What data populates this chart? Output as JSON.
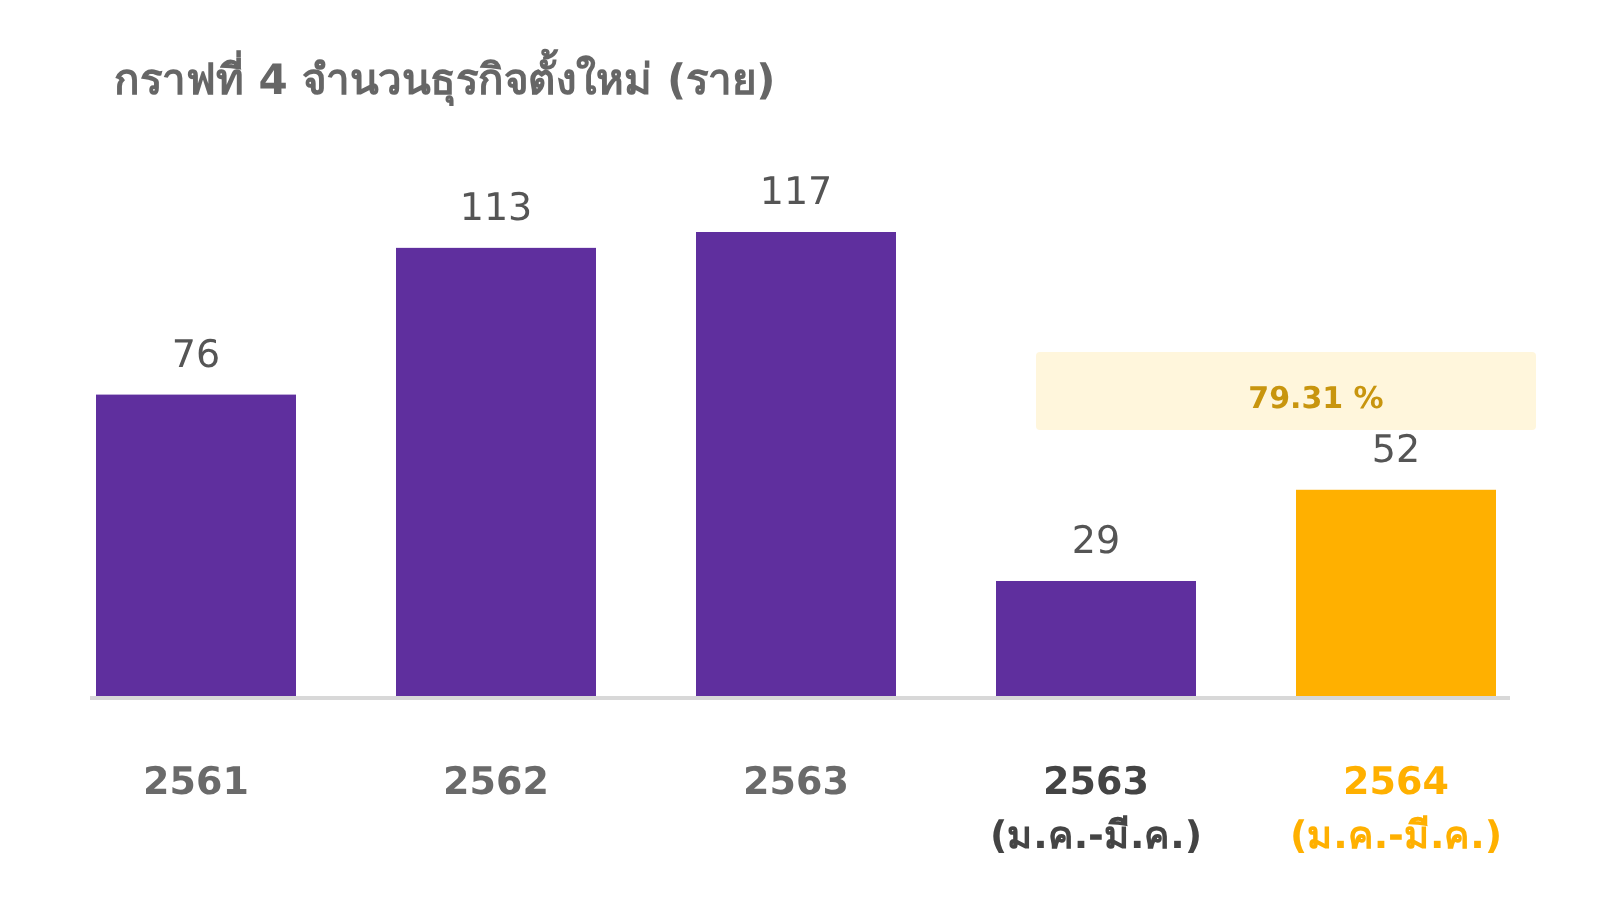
{
  "chart_data": {
    "type": "bar",
    "title": "กราฟที่ 4 จำนวนธุรกิจตั้งใหม่ (ราย)",
    "categories": [
      "2561",
      "2562",
      "2563",
      "2563\n(ม.ค.-มี.ค.)",
      "2564\n(ม.ค.-มี.ค.)"
    ],
    "values": [
      76,
      113,
      117,
      29,
      52
    ],
    "colors": [
      "#5f2f9e",
      "#5f2f9e",
      "#5f2f9e",
      "#5f2f9e",
      "#ffb000"
    ],
    "data_labels": true,
    "annotations": [
      "79.31 %"
    ]
  }
}
